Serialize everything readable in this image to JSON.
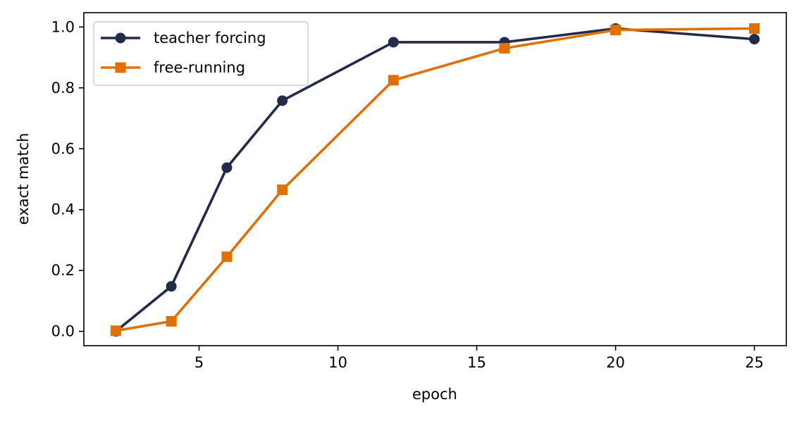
{
  "chart_data": {
    "type": "line",
    "title": "",
    "xlabel": "epoch",
    "ylabel": "exact match",
    "xlim": [
      0.85,
      26.15
    ],
    "ylim": [
      -0.047,
      1.047
    ],
    "xticks": [
      5,
      10,
      15,
      20,
      25
    ],
    "yticks": [
      0.0,
      0.2,
      0.4,
      0.6,
      0.8,
      1.0
    ],
    "xtick_labels": [
      "5",
      "10",
      "15",
      "20",
      "25"
    ],
    "ytick_labels": [
      "0.0",
      "0.2",
      "0.4",
      "0.6",
      "0.8",
      "1.0"
    ],
    "grid": false,
    "legend_position": "top-left",
    "x": [
      2,
      4,
      6,
      8,
      12,
      16,
      20,
      25
    ],
    "series": [
      {
        "name": "teacher forcing",
        "values": [
          0.0,
          0.148,
          0.538,
          0.758,
          0.95,
          0.95,
          0.995,
          0.96
        ],
        "color": "#222b48",
        "marker": "circle"
      },
      {
        "name": "free-running",
        "values": [
          0.002,
          0.033,
          0.245,
          0.465,
          0.825,
          0.93,
          0.99,
          0.995
        ],
        "color": "#e07000",
        "marker": "square"
      }
    ]
  }
}
